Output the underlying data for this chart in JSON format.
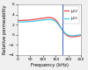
{
  "title": "",
  "xlabel": "Frequency (kHz)",
  "ylabel": "Relative permeability",
  "xlim": [
    0,
    250
  ],
  "ylim": [
    -4,
    6
  ],
  "resonance_freq": 175,
  "x_start": 1,
  "x_end": 250,
  "color_mu12": "#ee4444",
  "color_mu11": "#44ccee",
  "legend_mu12": "$\\mu_{12}$",
  "legend_mu11": "$\\mu_{11}$",
  "bg_color": "#f0f0f0",
  "plot_bg": "#ffffff",
  "line_width": 0.9,
  "font_size": 3.8,
  "tick_font_size": 3.2,
  "xticks": [
    0,
    50,
    100,
    150,
    200,
    250
  ],
  "yticks": [
    -4,
    -2,
    0,
    2,
    4,
    6
  ]
}
